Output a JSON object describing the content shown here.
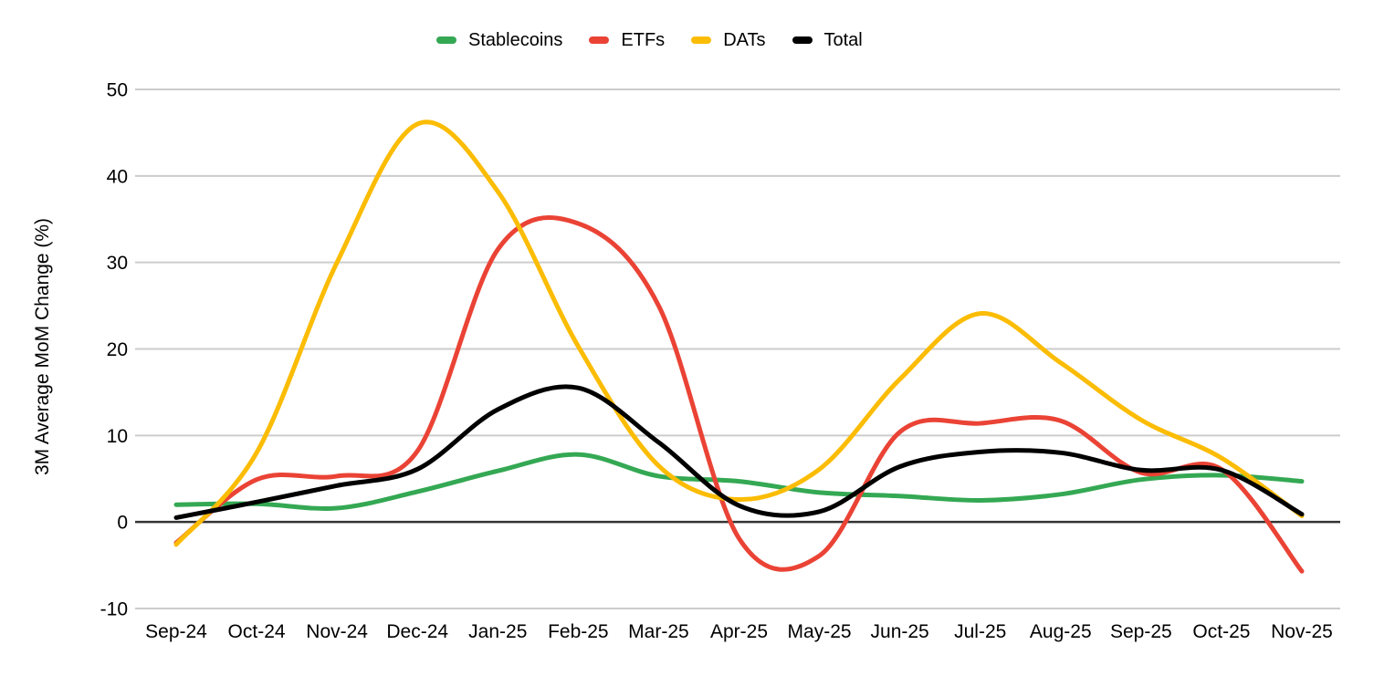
{
  "chart_data": {
    "type": "line",
    "title": "",
    "xlabel": "",
    "ylabel": "3M Average MoM Change (%)",
    "categories": [
      "Sep-24",
      "Oct-24",
      "Nov-24",
      "Dec-24",
      "Jan-25",
      "Feb-25",
      "Mar-25",
      "Apr-25",
      "May-25",
      "Jun-25",
      "Jul-25",
      "Aug-25",
      "Sep-25",
      "Oct-25",
      "Nov-25"
    ],
    "series": [
      {
        "name": "Stablecoins",
        "color": "#34A853",
        "values": [
          2.0,
          2.1,
          1.6,
          3.5,
          5.9,
          7.8,
          5.3,
          4.7,
          3.4,
          3.0,
          2.5,
          3.2,
          4.9,
          5.4,
          4.7
        ]
      },
      {
        "name": "ETFs",
        "color": "#EA4335",
        "values": [
          -2.4,
          4.9,
          5.3,
          8.2,
          31.5,
          34.5,
          25.0,
          -1.9,
          -3.9,
          10.4,
          11.4,
          11.7,
          5.7,
          6.1,
          -5.7
        ]
      },
      {
        "name": "DATs",
        "color": "#FBBC04",
        "values": [
          -2.6,
          8.0,
          30.0,
          46.0,
          38.2,
          20.3,
          6.5,
          2.6,
          6.1,
          16.5,
          24.1,
          18.4,
          11.8,
          7.4,
          0.7
        ]
      },
      {
        "name": "Total",
        "color": "#000000",
        "values": [
          0.5,
          2.3,
          4.2,
          6.1,
          13.0,
          15.5,
          9.2,
          1.9,
          1.2,
          6.4,
          8.1,
          8.0,
          6.0,
          6.0,
          0.9
        ]
      }
    ],
    "y_ticks": [
      50,
      40,
      30,
      20,
      10,
      0,
      -10
    ],
    "ylim": [
      -10,
      50
    ],
    "legend_position": "top-center",
    "grid": "horizontal-gridlines",
    "line_style": "smooth",
    "gridline_color": "#cccccc",
    "axis_line_color": "#333333",
    "text_color": "#000000"
  }
}
